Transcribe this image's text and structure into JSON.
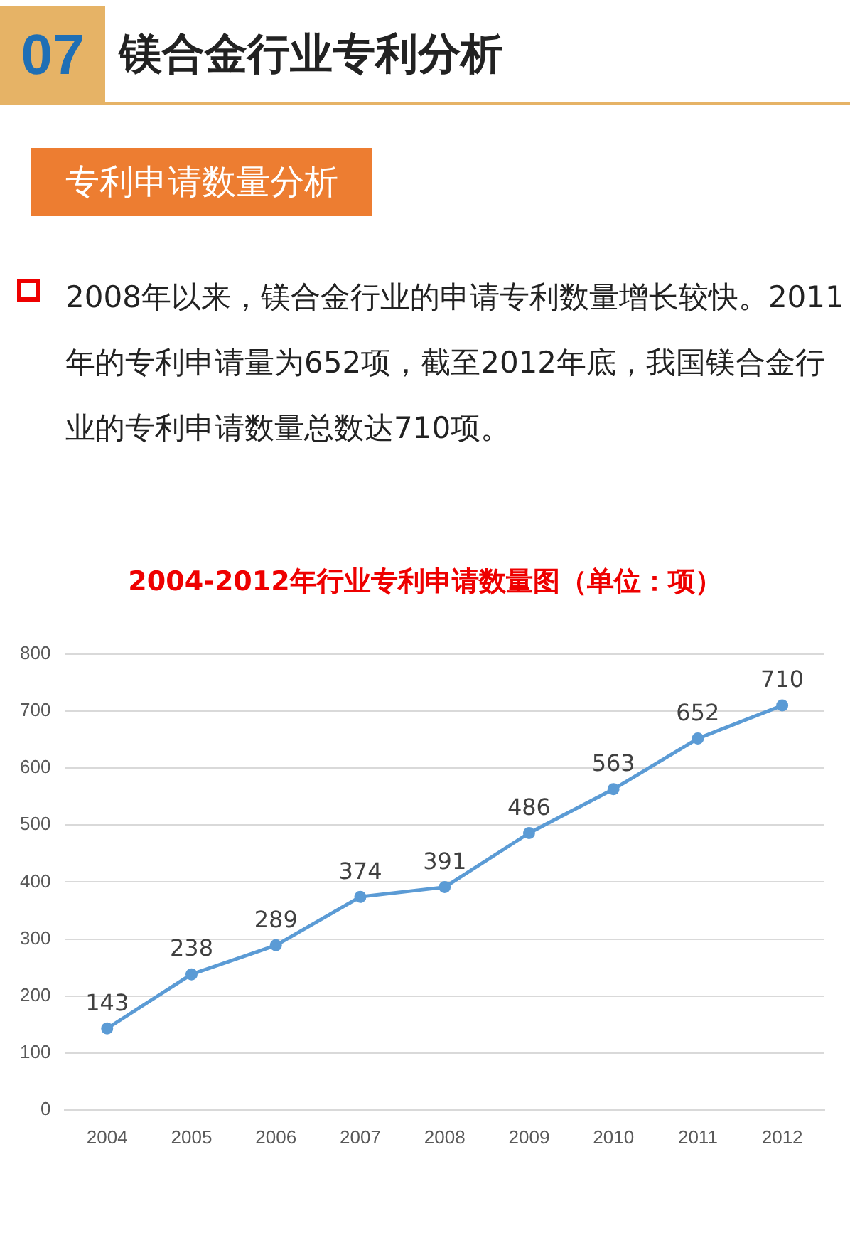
{
  "chart_data": {
    "type": "line",
    "title": "2004-2012年行业专利申请数量图（单位：项）",
    "annotations": [
      "07",
      "镁合金行业专利分析",
      "专利申请数量分析",
      "2008年以来，镁合金行业的申请专利数量增长较快。2011年的专利申请量为652项，截至2012年底，我国镁合金行业的专利申请数量总数达710项。"
    ],
    "categories": [
      "2004",
      "2005",
      "2006",
      "2007",
      "2008",
      "2009",
      "2010",
      "2011",
      "2012"
    ],
    "series": [
      {
        "color": "#5b9bd5",
        "values": [
          143,
          238,
          289,
          374,
          391,
          486,
          563,
          652,
          710
        ]
      }
    ],
    "ylim": [
      0,
      800
    ],
    "yticks": [
      0,
      100,
      200,
      300,
      400,
      500,
      600,
      700,
      800
    ],
    "grid": "y",
    "legend": false,
    "marker": "circle",
    "data_labels": true
  }
}
